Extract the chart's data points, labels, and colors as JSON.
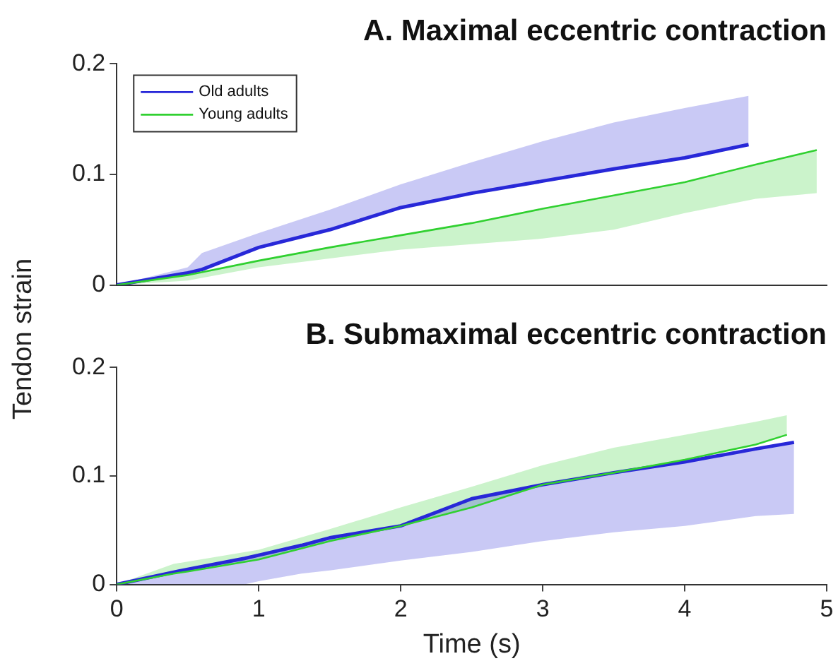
{
  "chart_data": [
    {
      "type": "line",
      "title": "A. Maximal eccentric contraction",
      "ylabel": "Tendon strain",
      "xlim": [
        0,
        5
      ],
      "ylim": [
        0,
        0.2
      ],
      "xticks": [
        0,
        1,
        2,
        3,
        4,
        5
      ],
      "yticks": [
        0,
        0.1,
        0.2
      ],
      "tick_labels": "y",
      "legend": "top left",
      "grid": false,
      "series": [
        {
          "name": "Old adults",
          "color": "#2828d8",
          "x": [
            0,
            0.5,
            0.6,
            1,
            1.5,
            2,
            2.5,
            3,
            3.5,
            4,
            4.45
          ],
          "values": [
            0,
            0.011,
            0.014,
            0.034,
            0.05,
            0.07,
            0.083,
            0.094,
            0.105,
            0.115,
            0.127
          ],
          "lower": [
            0,
            0.011,
            0.014,
            0.034,
            0.05,
            0.07,
            0.083,
            0.094,
            0.105,
            0.115,
            0.127
          ],
          "upper": [
            0,
            0.016,
            0.029,
            0.047,
            0.068,
            0.091,
            0.111,
            0.13,
            0.147,
            0.16,
            0.171
          ]
        },
        {
          "name": "Young adults",
          "color": "#30d030",
          "x": [
            0,
            0.5,
            1,
            1.5,
            2,
            2.5,
            3,
            3.5,
            4,
            4.5,
            4.93
          ],
          "values": [
            0,
            0.009,
            0.022,
            0.034,
            0.045,
            0.056,
            0.069,
            0.081,
            0.093,
            0.109,
            0.122
          ],
          "lower": [
            0,
            0.004,
            0.016,
            0.024,
            0.032,
            0.037,
            0.042,
            0.05,
            0.065,
            0.078,
            0.083
          ],
          "upper": [
            0,
            0.009,
            0.022,
            0.034,
            0.045,
            0.056,
            0.069,
            0.081,
            0.093,
            0.109,
            0.122
          ]
        }
      ]
    },
    {
      "type": "line",
      "title": "B. Submaximal eccentric contraction",
      "xlabel": "Time (s)",
      "xlim": [
        0,
        5
      ],
      "ylim": [
        0,
        0.2
      ],
      "xticks": [
        0,
        1,
        2,
        3,
        4,
        5
      ],
      "yticks": [
        0,
        0.1,
        0.2
      ],
      "grid": false,
      "legend": false,
      "series": [
        {
          "color": "#2828d8",
          "x": [
            0,
            0.5,
            0.9,
            1,
            1.3,
            1.5,
            2,
            2.5,
            3,
            3.5,
            4,
            4.5,
            4.77
          ],
          "values": [
            0,
            0.014,
            0.024,
            0.027,
            0.036,
            0.043,
            0.054,
            0.079,
            0.092,
            0.103,
            0.113,
            0.125,
            0.131
          ],
          "lower": [
            0,
            0,
            0,
            0.003,
            0.01,
            0.013,
            0.022,
            0.03,
            0.04,
            0.048,
            0.054,
            0.063,
            0.065
          ],
          "upper": [
            0,
            0.014,
            0.024,
            0.027,
            0.036,
            0.043,
            0.054,
            0.079,
            0.092,
            0.103,
            0.113,
            0.125,
            0.131
          ]
        },
        {
          "color": "#30d030",
          "x": [
            0,
            0.4,
            0.5,
            1,
            1.5,
            2,
            2.5,
            3,
            3.5,
            4,
            4.5,
            4.72
          ],
          "values": [
            0,
            0.01,
            0.012,
            0.023,
            0.04,
            0.054,
            0.071,
            0.092,
            0.103,
            0.115,
            0.129,
            0.138
          ],
          "lower": [
            0,
            0.01,
            0.012,
            0.023,
            0.04,
            0.054,
            0.071,
            0.092,
            0.103,
            0.115,
            0.129,
            0.138
          ],
          "upper": [
            0,
            0.019,
            0.021,
            0.032,
            0.051,
            0.071,
            0.09,
            0.11,
            0.126,
            0.138,
            0.15,
            0.156
          ]
        }
      ]
    }
  ]
}
